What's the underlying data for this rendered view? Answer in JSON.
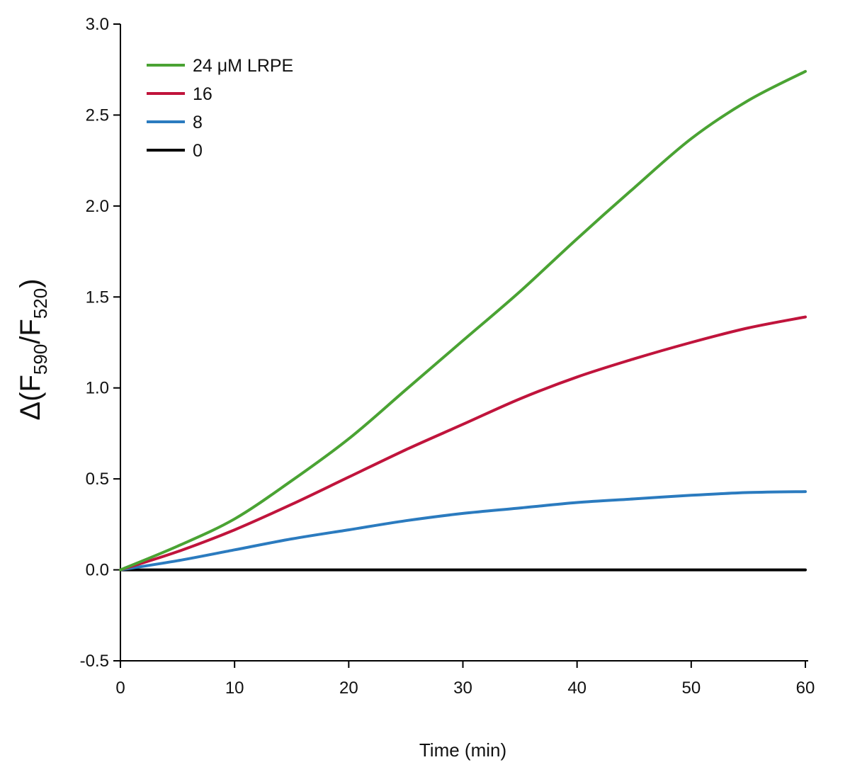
{
  "chart_data": {
    "type": "line",
    "xlabel": "Time (min)",
    "ylabel": {
      "prefix": "Δ(F",
      "sub1": "590",
      "mid": "/F",
      "sub2": "520",
      "suffix": ")"
    },
    "xlim": [
      0,
      60
    ],
    "ylim": [
      -0.5,
      3.0
    ],
    "x_ticks": [
      "0",
      "10",
      "20",
      "30",
      "40",
      "50",
      "60"
    ],
    "y_ticks": [
      "-0.5",
      "0.0",
      "0.5",
      "1.0",
      "1.5",
      "2.0",
      "2.5",
      "3.0"
    ],
    "grid": false,
    "legend_position": "top-left",
    "x": [
      0,
      5,
      10,
      15,
      20,
      25,
      30,
      35,
      40,
      45,
      50,
      55,
      60
    ],
    "series": [
      {
        "name": "24 μM LRPE",
        "color": "#4aa333",
        "values": [
          0,
          0.13,
          0.28,
          0.49,
          0.72,
          0.99,
          1.26,
          1.53,
          1.82,
          2.1,
          2.37,
          2.58,
          2.74
        ]
      },
      {
        "name": "16",
        "color": "#c0143c",
        "values": [
          0,
          0.1,
          0.22,
          0.36,
          0.51,
          0.66,
          0.8,
          0.94,
          1.06,
          1.16,
          1.25,
          1.33,
          1.39
        ]
      },
      {
        "name": "8",
        "color": "#2b7bbf",
        "values": [
          0,
          0.05,
          0.11,
          0.17,
          0.22,
          0.27,
          0.31,
          0.34,
          0.37,
          0.39,
          0.41,
          0.425,
          0.43
        ]
      },
      {
        "name": "0",
        "color": "#000000",
        "values": [
          0,
          0,
          0,
          0,
          0,
          0,
          0,
          0,
          0,
          0,
          0,
          0,
          0
        ]
      }
    ]
  }
}
